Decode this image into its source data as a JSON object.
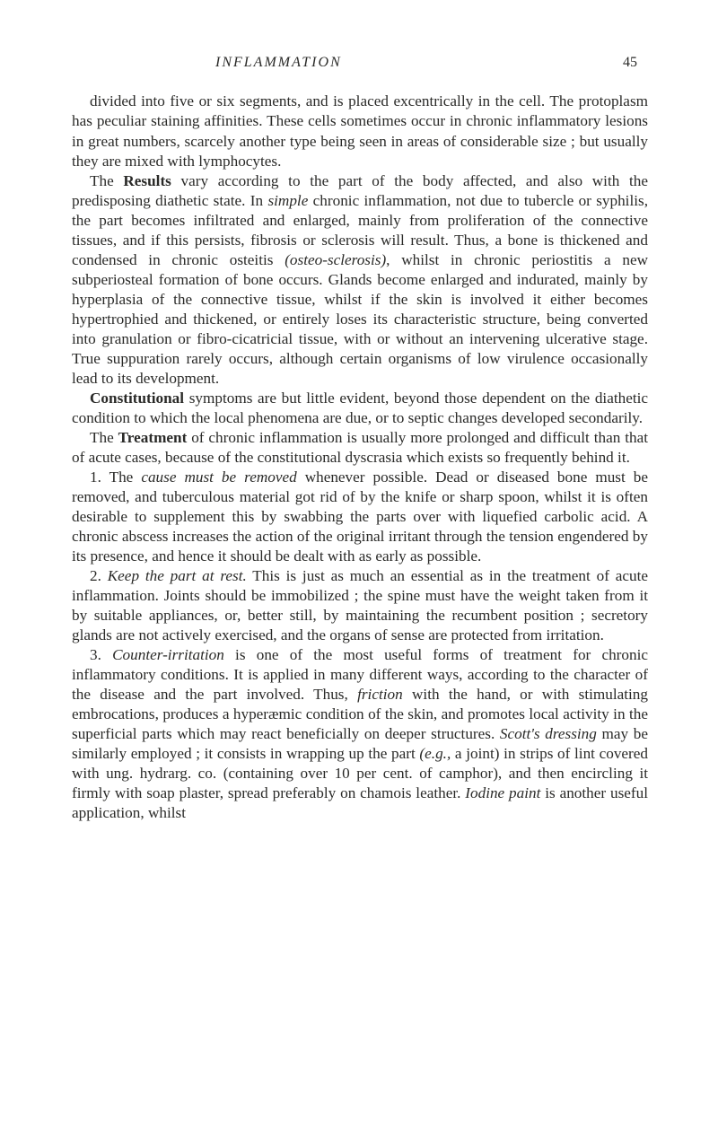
{
  "header": {
    "title": "INFLAMMATION",
    "page_number": "45"
  },
  "paragraphs": [
    {
      "runs": [
        {
          "t": "divided into five or six segments, and is placed excentrically in the cell. The protoplasm has peculiar staining affinities. These cells sometimes occur in chronic inflammatory lesions in great numbers, scarcely another type being seen in areas of considerable size ; but usually they are mixed with lymphocytes."
        }
      ]
    },
    {
      "runs": [
        {
          "t": "The "
        },
        {
          "t": "Results",
          "cls": "bold"
        },
        {
          "t": " vary according to the part of the body affected, and also with the predisposing diathetic state. In "
        },
        {
          "t": "simple",
          "cls": "italic"
        },
        {
          "t": " chronic inflammation, not due to tubercle or syphilis, the part becomes infiltrated and enlarged, mainly from proliferation of the connective tissues, and if this persists, fibrosis or sclerosis will result. Thus, a bone is thickened and condensed in chronic osteitis "
        },
        {
          "t": "(osteo-sclerosis)",
          "cls": "italic"
        },
        {
          "t": ", whilst in chronic periostitis a new subperiosteal formation of bone occurs. Glands become enlarged and indurated, mainly by hyperplasia of the connective tissue, whilst if the skin is involved it either becomes hypertrophied and thickened, or entirely loses its characteristic structure, being converted into granulation or fibro-cicatricial tissue, with or without an intervening ulcerative stage. True suppuration rarely occurs, although certain organisms of low virulence occasionally lead to its development."
        }
      ]
    },
    {
      "runs": [
        {
          "t": "Constitutional",
          "cls": "bold"
        },
        {
          "t": " symptoms are but little evident, beyond those dependent on the diathetic condition to which the local phenomena are due, or to septic changes developed secondarily."
        }
      ]
    },
    {
      "runs": [
        {
          "t": "The "
        },
        {
          "t": "Treatment",
          "cls": "bold"
        },
        {
          "t": " of chronic inflammation is usually more prolonged and difficult than that of acute cases, because of the constitutional dyscrasia which exists so frequently behind it."
        }
      ]
    },
    {
      "runs": [
        {
          "t": "1. The "
        },
        {
          "t": "cause must be removed",
          "cls": "italic"
        },
        {
          "t": " whenever possible. Dead or diseased bone must be removed, and tuberculous material got rid of by the knife or sharp spoon, whilst it is often desirable to supplement this by swabbing the parts over with liquefied carbolic acid. A chronic abscess increases the action of the original irritant through the tension engendered by its presence, and hence it should be dealt with as early as possible."
        }
      ]
    },
    {
      "runs": [
        {
          "t": "2. "
        },
        {
          "t": "Keep the part at rest.",
          "cls": "italic"
        },
        {
          "t": " This is just as much an essential as in the treatment of acute inflammation. Joints should be immobilized ; the spine must have the weight taken from it by suitable appliances, or, better still, by maintaining the recumbent position ; secretory glands are not actively exercised, and the organs of sense are protected from irritation."
        }
      ]
    },
    {
      "runs": [
        {
          "t": "3. "
        },
        {
          "t": "Counter-irritation",
          "cls": "italic"
        },
        {
          "t": " is one of the most useful forms of treatment for chronic inflammatory conditions. It is applied in many different ways, according to the character of the disease and the part involved. Thus, "
        },
        {
          "t": "friction",
          "cls": "italic"
        },
        {
          "t": " with the hand, or with stimulating embrocations, produces a hyperæmic condition of the skin, and promotes local activity in the superficial parts which may react beneficially on deeper structures. "
        },
        {
          "t": "Scott's dressing",
          "cls": "italic"
        },
        {
          "t": " may be similarly employed ; it consists in wrapping up the part "
        },
        {
          "t": "(e.g.,",
          "cls": "italic"
        },
        {
          "t": " a joint) in strips of lint covered with ung. hydrarg. co. (containing over 10 per cent. of camphor), and then encircling it firmly with soap plaster, spread preferably on chamois leather. "
        },
        {
          "t": "Iodine paint",
          "cls": "italic"
        },
        {
          "t": " is another useful application, whilst"
        }
      ]
    }
  ]
}
